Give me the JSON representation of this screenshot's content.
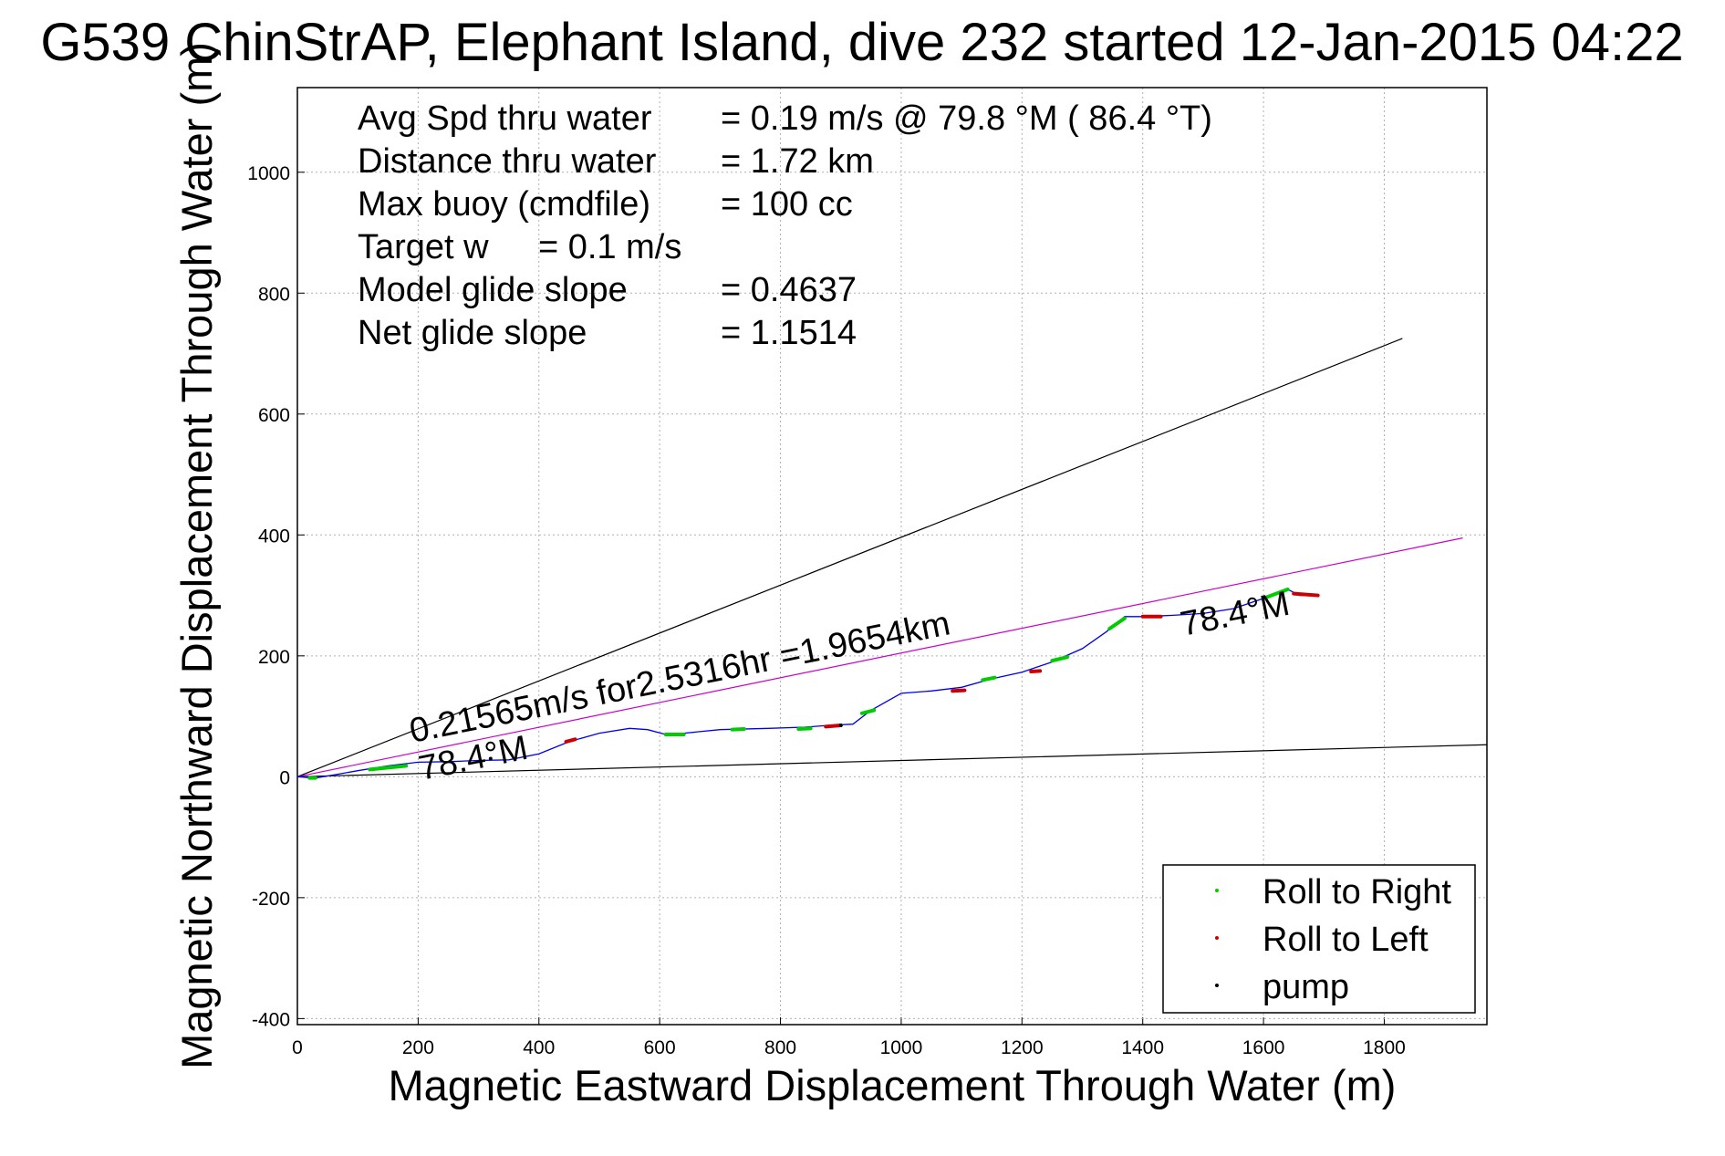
{
  "chart_data": {
    "type": "line",
    "title": "G539 ChinStrAP, Elephant Island, dive 232 started 12-Jan-2015 04:22",
    "xlabel": "Magnetic Eastward Displacement Through Water (m)",
    "ylabel": "Magnetic Northward Displacement Through Water (m)",
    "xlim": [
      0,
      1970
    ],
    "ylim": [
      -410,
      1140
    ],
    "xticks": [
      0,
      200,
      400,
      600,
      800,
      1000,
      1200,
      1400,
      1600,
      1800
    ],
    "yticks": [
      -400,
      -200,
      0,
      200,
      400,
      600,
      800,
      1000
    ],
    "grid": true,
    "legend_position": "bottom-right",
    "legend": [
      {
        "label": "Roll to Right",
        "color": "#00cc00"
      },
      {
        "label": "Roll to Left",
        "color": "#cc0000"
      },
      {
        "label": "pump",
        "color": "#000000"
      }
    ],
    "stats": [
      {
        "label": "Avg Spd thru water",
        "value": "=  0.19 m/s @  79.8 °M ( 86.4 °T)"
      },
      {
        "label": "Distance thru water",
        "value": "=  1.72 km"
      },
      {
        "label": "Max buoy (cmdfile)",
        "value": "= 100 cc"
      },
      {
        "label": "Target w",
        "value": "= 0.1 m/s"
      },
      {
        "label": "Model glide slope",
        "value": "= 0.4637"
      },
      {
        "label": "Net glide slope",
        "value": "= 1.1514"
      }
    ],
    "annotations": {
      "current_label": "0.21565m/s for2.5316hr =1.9654km",
      "heading_label_start": "78.4°M",
      "heading_label_end": "78.4°M"
    },
    "reference_lines": [
      {
        "name": "upper-bound",
        "color": "#000000",
        "points": [
          [
            0,
            0
          ],
          [
            1830,
            725
          ]
        ]
      },
      {
        "name": "current",
        "color": "#cc00cc",
        "points": [
          [
            0,
            0
          ],
          [
            1930,
            395
          ]
        ]
      },
      {
        "name": "lower-bound",
        "color": "#000000",
        "points": [
          [
            0,
            0
          ],
          [
            1970,
            53
          ]
        ]
      }
    ],
    "series": [
      {
        "color": "#0000ee",
        "x": [
          0,
          30,
          60,
          100,
          150,
          200,
          250,
          300,
          350,
          400,
          450,
          500,
          550,
          580,
          610,
          640,
          700,
          780,
          840,
          880,
          920,
          950,
          1000,
          1050,
          1100,
          1150,
          1200,
          1250,
          1300,
          1340,
          1370,
          1400,
          1450,
          1500,
          1550,
          1600,
          1640,
          1660,
          1690
        ],
        "y": [
          0,
          -2,
          3,
          10,
          18,
          24,
          25,
          27,
          28,
          38,
          58,
          72,
          80,
          78,
          70,
          72,
          78,
          80,
          82,
          85,
          87,
          110,
          138,
          142,
          148,
          162,
          173,
          190,
          212,
          240,
          265,
          265,
          267,
          270,
          278,
          295,
          310,
          300,
          300
        ]
      }
    ],
    "roll_right_segments": [
      [
        [
          20,
          30
        ],
        [
          -2,
          -2
        ]
      ],
      [
        [
          120,
          180
        ],
        [
          12,
          18
        ]
      ],
      [
        [
          610,
          640
        ],
        [
          70,
          70
        ]
      ],
      [
        [
          720,
          740
        ],
        [
          78,
          79
        ]
      ],
      [
        [
          830,
          850
        ],
        [
          79,
          80
        ]
      ],
      [
        [
          935,
          955
        ],
        [
          105,
          110
        ]
      ],
      [
        [
          1135,
          1155
        ],
        [
          160,
          164
        ]
      ],
      [
        [
          1250,
          1275
        ],
        [
          192,
          198
        ]
      ],
      [
        [
          1345,
          1370
        ],
        [
          245,
          262
        ]
      ],
      [
        [
          1600,
          1640
        ],
        [
          295,
          310
        ]
      ]
    ],
    "roll_left_segments": [
      [
        [
          445,
          460
        ],
        [
          58,
          62
        ]
      ],
      [
        [
          875,
          900
        ],
        [
          83,
          85
        ]
      ],
      [
        [
          1085,
          1105
        ],
        [
          142,
          143
        ]
      ],
      [
        [
          1215,
          1230
        ],
        [
          174,
          175
        ]
      ],
      [
        [
          1400,
          1430
        ],
        [
          265,
          265
        ]
      ],
      [
        [
          1650,
          1690
        ],
        [
          303,
          300
        ]
      ]
    ],
    "pump_points": [
      [
        320,
        30
      ],
      [
        900,
        85
      ],
      [
        1500,
        270
      ]
    ]
  }
}
